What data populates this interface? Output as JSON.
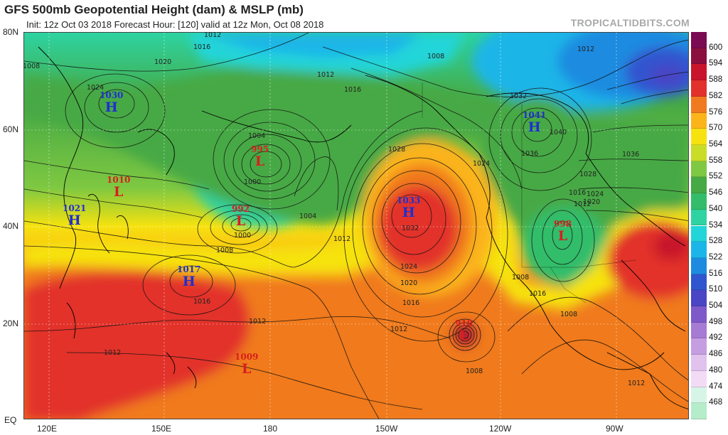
{
  "header": {
    "title": "GFS 500mb Geopotential Height (dam) & MSLP (mb)",
    "subtitle": "Init: 12z Oct 03 2018   Forecast Hour: [120]   valid at 12z Mon, Oct 08 2018",
    "brand": "TROPICALTIDBITS.COM"
  },
  "axes": {
    "lat_labels": [
      "80N",
      "60N",
      "40N",
      "20N",
      "EQ"
    ],
    "lon_labels": [
      "120E",
      "150E",
      "180",
      "150W",
      "120W",
      "90W"
    ]
  },
  "colorbar": {
    "labels": [
      "600",
      "594",
      "588",
      "582",
      "576",
      "570",
      "564",
      "558",
      "552",
      "546",
      "540",
      "534",
      "528",
      "522",
      "516",
      "510",
      "504",
      "498",
      "492",
      "486",
      "480",
      "474",
      "468"
    ],
    "colors": [
      "#8b0f3e",
      "#c8152c",
      "#e2312b",
      "#f07a1f",
      "#fbb41a",
      "#f6e20f",
      "#c8dc28",
      "#7ec842",
      "#46a944",
      "#33bd6a",
      "#2ed3a1",
      "#22d5d9",
      "#1cb5e8",
      "#1e8be0",
      "#3155cf",
      "#4a45c4",
      "#7e59c9",
      "#a57bd4",
      "#c49ee0",
      "#e1c2ee",
      "#f2dcf5",
      "#d7f5e6",
      "#b5ecca"
    ]
  },
  "centers": [
    {
      "type": "H",
      "value": "1030"
    },
    {
      "type": "H",
      "value": "1041"
    },
    {
      "type": "L",
      "value": "995"
    },
    {
      "type": "L",
      "value": "1010"
    },
    {
      "type": "H",
      "value": "1021"
    },
    {
      "type": "L",
      "value": "992"
    },
    {
      "type": "H",
      "value": "1033"
    },
    {
      "type": "L",
      "value": "998"
    },
    {
      "type": "H",
      "value": "1017"
    },
    {
      "type": "L",
      "value": "1009"
    },
    {
      "type": "L",
      "value": "918"
    }
  ],
  "isobar_labels": [
    "1012",
    "1016",
    "1008",
    "1020",
    "1024",
    "1004",
    "1000",
    "1028",
    "1032",
    "1036",
    "1040",
    "1012",
    "1016",
    "1008",
    "1012",
    "1016",
    "1020",
    "1024",
    "1012",
    "1008",
    "1012",
    "1016",
    "1032",
    "1024",
    "1004",
    "1000",
    "1008",
    "1012",
    "1028",
    "1024",
    "1020",
    "1016",
    "1012",
    "1008",
    "1016",
    "1012",
    "1008",
    "1012",
    "1036"
  ]
}
